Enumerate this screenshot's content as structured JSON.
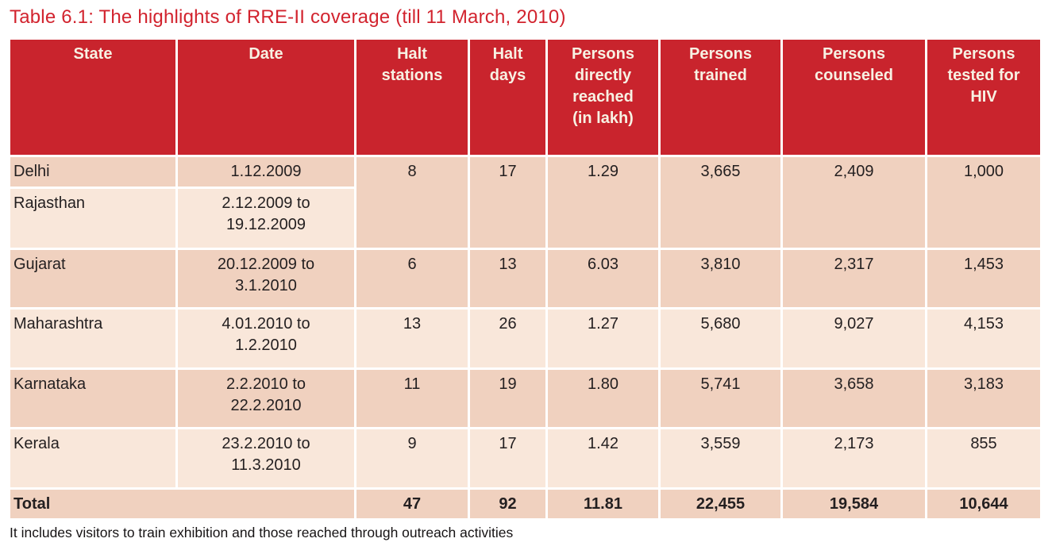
{
  "title": "Table 6.1: The highlights of RRE-II coverage (till 11 March, 2010)",
  "table": {
    "columns": [
      "State",
      "Date",
      "Halt stations",
      "Halt days",
      "Persons directly reached (in lakh)",
      "Persons trained",
      "Persons counseled",
      "Persons tested for HIV"
    ],
    "rows": [
      {
        "state": "Delhi",
        "date": "1.12.2009",
        "halt_stations": "8",
        "halt_days": "17",
        "reached": "1.29",
        "trained": "3,665",
        "counseled": "2,409",
        "tested": "1,000"
      },
      {
        "state": "Rajasthan",
        "date": "2.12.2009 to 19.12.2009"
      },
      {
        "state": "Gujarat",
        "date": "20.12.2009 to 3.1.2010",
        "halt_stations": "6",
        "halt_days": "13",
        "reached": "6.03",
        "trained": "3,810",
        "counseled": "2,317",
        "tested": "1,453"
      },
      {
        "state": "Maharashtra",
        "date": "4.01.2010 to 1.2.2010",
        "halt_stations": "13",
        "halt_days": "26",
        "reached": "1.27",
        "trained": "5,680",
        "counseled": "9,027",
        "tested": "4,153"
      },
      {
        "state": "Karnataka",
        "date": "2.2.2010 to 22.2.2010",
        "halt_stations": "11",
        "halt_days": "19",
        "reached": "1.80",
        "trained": "5,741",
        "counseled": "3,658",
        "tested": "3,183"
      },
      {
        "state": "Kerala",
        "date": "23.2.2010 to 11.3.2010",
        "halt_stations": "9",
        "halt_days": "17",
        "reached": "1.42",
        "trained": "3,559",
        "counseled": "2,173",
        "tested": "855"
      }
    ],
    "total": {
      "label": "Total",
      "halt_stations": "47",
      "halt_days": "92",
      "reached": "11.81",
      "trained": "22,455",
      "counseled": "19,584",
      "tested": "10,644"
    }
  },
  "footnote": "It includes visitors to train exhibition and those reached through outreach activities",
  "colors": {
    "title_color": "#d2232e",
    "header_bg": "#c9242d",
    "header_text": "#f7f1e3",
    "row_dark": "#f0d1bf",
    "row_light": "#f9e7da",
    "body_text": "#231f20",
    "border_color": "#ffffff"
  }
}
